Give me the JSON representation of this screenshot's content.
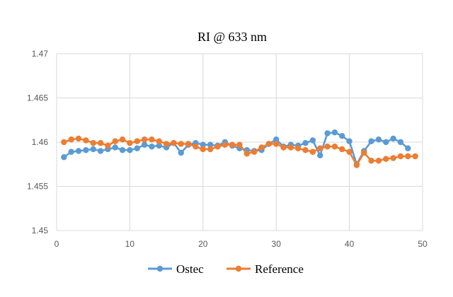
{
  "chart_data": {
    "type": "line",
    "title": "RI @ 633 nm",
    "xlabel": "",
    "ylabel": "",
    "xlim": [
      0,
      50
    ],
    "ylim": [
      1.45,
      1.47
    ],
    "x_ticks": [
      0,
      10,
      20,
      30,
      40,
      50
    ],
    "x_tick_labels": [
      "0",
      "10",
      "20",
      "30",
      "40",
      "50"
    ],
    "y_ticks": [
      1.45,
      1.455,
      1.46,
      1.465,
      1.47
    ],
    "y_tick_labels": [
      "1.45",
      "1.455",
      "1.46",
      "1.465",
      "1.47"
    ],
    "grid": "both",
    "legend_position": "bottom",
    "series": [
      {
        "name": "Ostec",
        "color": "#5B9BD5",
        "x": [
          1,
          2,
          3,
          4,
          5,
          6,
          7,
          8,
          9,
          10,
          11,
          12,
          13,
          14,
          15,
          16,
          17,
          18,
          19,
          20,
          21,
          22,
          23,
          24,
          25,
          26,
          27,
          28,
          29,
          30,
          31,
          32,
          33,
          34,
          35,
          36,
          37,
          38,
          39,
          40,
          41,
          42,
          43,
          44,
          45,
          46,
          47,
          48
        ],
        "values": [
          1.4583,
          1.4589,
          1.459,
          1.4591,
          1.4592,
          1.459,
          1.4592,
          1.4594,
          1.4591,
          1.4591,
          1.4593,
          1.4597,
          1.4595,
          1.4596,
          1.4594,
          1.4599,
          1.4588,
          1.4597,
          1.4599,
          1.4597,
          1.4597,
          1.4596,
          1.46,
          1.4596,
          1.4593,
          1.4591,
          1.459,
          1.4591,
          1.4598,
          1.4603,
          1.4595,
          1.4597,
          1.4596,
          1.4599,
          1.4602,
          1.4585,
          1.461,
          1.4611,
          1.4607,
          1.4601,
          1.4575,
          1.459,
          1.4601,
          1.4603,
          1.46,
          1.4604,
          1.46,
          1.4593
        ]
      },
      {
        "name": "Reference",
        "color": "#ED7D31",
        "x": [
          1,
          2,
          3,
          4,
          5,
          6,
          7,
          8,
          9,
          10,
          11,
          12,
          13,
          14,
          15,
          16,
          17,
          18,
          19,
          20,
          21,
          22,
          23,
          24,
          25,
          26,
          27,
          28,
          29,
          30,
          31,
          32,
          33,
          34,
          35,
          36,
          37,
          38,
          39,
          40,
          41,
          42,
          43,
          44,
          45,
          46,
          47,
          48,
          49
        ],
        "values": [
          1.46,
          1.4603,
          1.4604,
          1.4602,
          1.4599,
          1.4599,
          1.4596,
          1.4601,
          1.4603,
          1.4599,
          1.4601,
          1.4603,
          1.4603,
          1.4601,
          1.4598,
          1.4599,
          1.4598,
          1.4598,
          1.4595,
          1.4592,
          1.4592,
          1.4595,
          1.4597,
          1.4597,
          1.4597,
          1.4587,
          1.4589,
          1.4594,
          1.4598,
          1.4598,
          1.4594,
          1.4594,
          1.4593,
          1.4591,
          1.4589,
          1.4593,
          1.4595,
          1.4595,
          1.4592,
          1.4589,
          1.4574,
          1.4588,
          1.4579,
          1.4579,
          1.4581,
          1.4582,
          1.4584,
          1.4584,
          1.4584
        ]
      }
    ]
  }
}
